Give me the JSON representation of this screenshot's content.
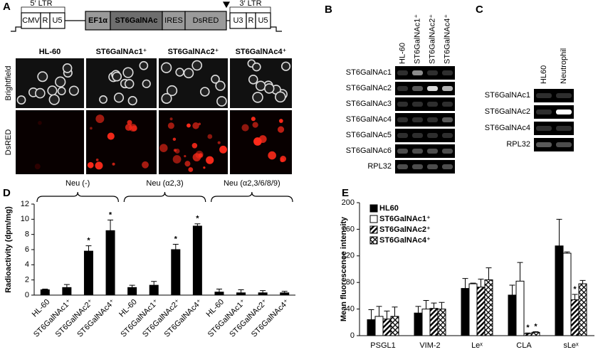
{
  "panels": {
    "A": {
      "label": "A",
      "vector": {
        "ltr5": "5′ LTR",
        "ltr3": "3′ LTR",
        "cmv": "CMV",
        "r1": "R",
        "u5a": "U5",
        "ef1a": "EF1α",
        "gene": "ST6GalNAc",
        "ires": "IRES",
        "dsred": "DsRED",
        "u3": "U3",
        "r2": "R",
        "u5b": "U5"
      },
      "columns": [
        "HL-60",
        "ST6GalNAc1⁺",
        "ST6GalNAc2⁺",
        "ST6GalNAc4⁺"
      ],
      "rows": [
        "Brightfield",
        "DsRED"
      ]
    },
    "B": {
      "label": "B",
      "columns": [
        "HL-60",
        "ST6GalNAc1⁺",
        "ST6GalNAc2⁺",
        "ST6GalNAc4⁺"
      ],
      "rows": [
        "ST6GalNAc1",
        "ST6GalNAc2",
        "ST6GalNAc3",
        "ST6GalNAc4",
        "ST6GalNAc5",
        "ST6GalNAc6",
        "RPL32"
      ]
    },
    "C": {
      "label": "C",
      "columns": [
        "HL60",
        "Neutrophil"
      ],
      "rows": [
        "ST6GalNAc1",
        "ST6GalNAc2",
        "ST6GalNAc4",
        "RPL32"
      ]
    }
  },
  "chart_data": [
    {
      "type": "bar",
      "panel_label": "D",
      "ylabel": "Radioactivity (dpm/mg)",
      "groups": [
        "Neu (-)",
        "Neu (α2,3)",
        "Neu (α2,3/6/8/9)"
      ],
      "categories": [
        "HL-60",
        "ST6GalNAc1⁺",
        "ST6GalNAc2⁺",
        "ST6GalNAc4⁺",
        "HL-60",
        "ST6GalNAc1⁺",
        "ST6GalNAc2⁺",
        "ST6GalNAc4⁺",
        "HL-60",
        "ST6GalNAc1⁺",
        "ST6GalNAc2⁺",
        "ST6GalNAc4⁺"
      ],
      "values": [
        0.7,
        1.0,
        5.8,
        8.5,
        1.0,
        1.3,
        6.0,
        9.1,
        0.4,
        0.3,
        0.3,
        0.3
      ],
      "errors": [
        0.1,
        0.4,
        0.7,
        1.4,
        0.3,
        0.5,
        0.7,
        0.3,
        0.4,
        0.4,
        0.3,
        0.2
      ],
      "significance": [
        null,
        null,
        "*",
        "*",
        null,
        null,
        "*",
        "*",
        null,
        null,
        null,
        null
      ],
      "color": "#000000",
      "ylim": [
        0,
        12
      ],
      "yticks": [
        0,
        2,
        4,
        6,
        8,
        10,
        12
      ]
    },
    {
      "type": "grouped_bar",
      "panel_label": "E",
      "ylabel": "Mean fluorescence intensity",
      "categories": [
        "PSGL1",
        "VIM-2",
        "Leˣ",
        "CLA",
        "sLeˣ"
      ],
      "series": [
        {
          "name": "HL60",
          "color": "#000000",
          "pattern": "solid",
          "values": [
            24,
            34,
            71,
            61,
            135
          ],
          "errors": [
            15,
            10,
            15,
            15,
            40
          ],
          "significance": [
            null,
            null,
            null,
            null,
            null
          ]
        },
        {
          "name": "ST6GalNAc1⁺",
          "color": "#ffffff",
          "pattern": "solid",
          "values": [
            29,
            40,
            78,
            82,
            124
          ],
          "errors": [
            15,
            13,
            1,
            28,
            2
          ],
          "significance": [
            null,
            null,
            null,
            null,
            null
          ]
        },
        {
          "name": "ST6GalNAc2⁺",
          "color": "#000000",
          "pattern": "diagonal",
          "values": [
            25,
            41,
            73,
            3,
            54
          ],
          "errors": [
            12,
            8,
            12,
            1,
            8
          ],
          "significance": [
            null,
            null,
            null,
            "*",
            "*"
          ]
        },
        {
          "name": "ST6GalNAc4⁺",
          "color": "#000000",
          "pattern": "crosshatch",
          "values": [
            29,
            40,
            84,
            5,
            78
          ],
          "errors": [
            14,
            10,
            18,
            1,
            5
          ],
          "significance": [
            null,
            null,
            null,
            "*",
            null
          ]
        }
      ],
      "legend": "upper-left",
      "ylim": [
        0,
        200
      ],
      "yticks": [
        0,
        40,
        80,
        120,
        160,
        200
      ]
    }
  ]
}
